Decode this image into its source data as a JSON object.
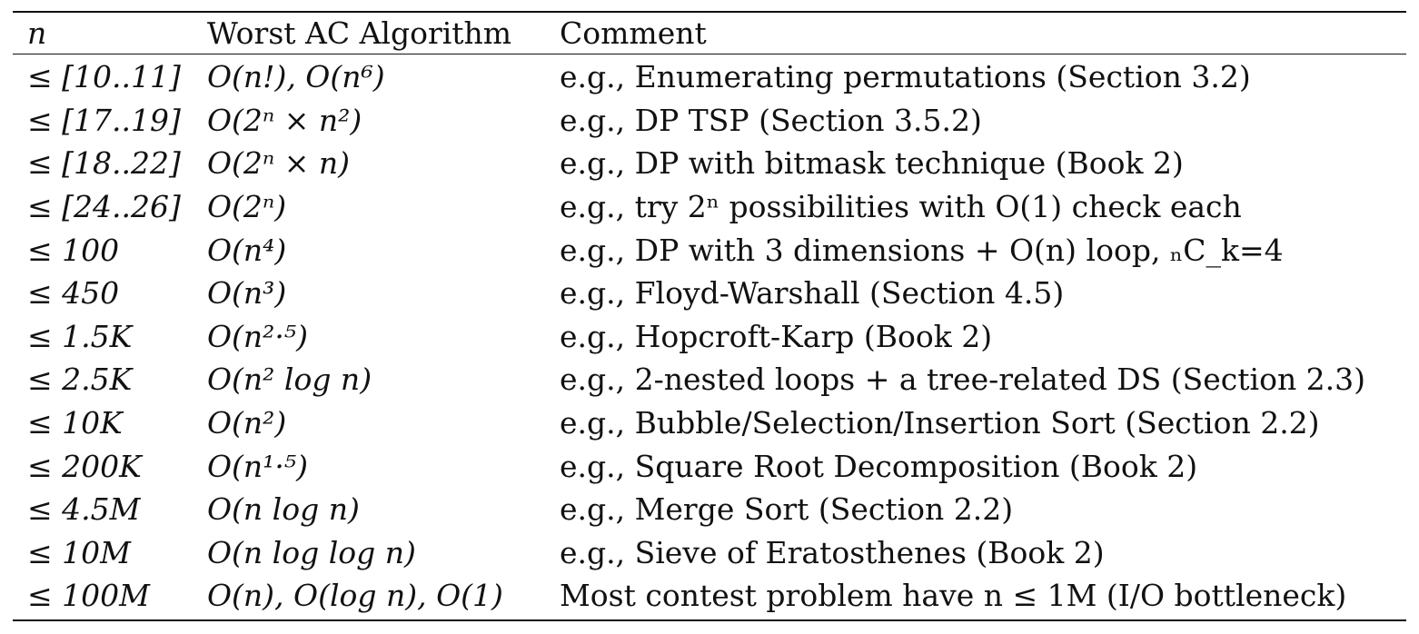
{
  "table": {
    "headers": {
      "n": "n",
      "algorithm": "Worst AC Algorithm",
      "comment": "Comment"
    },
    "rows": [
      {
        "n": "≤ [10..11]",
        "algorithm": "O(n!), O(n⁶)",
        "comment": "e.g., Enumerating permutations (Section 3.2)"
      },
      {
        "n": "≤ [17..19]",
        "algorithm": "O(2ⁿ × n²)",
        "comment": "e.g., DP TSP (Section 3.5.2)"
      },
      {
        "n": "≤ [18..22]",
        "algorithm": "O(2ⁿ × n)",
        "comment": "e.g., DP with bitmask technique (Book 2)"
      },
      {
        "n": "≤ [24..26]",
        "algorithm": "O(2ⁿ)",
        "comment": "e.g., try 2ⁿ possibilities with O(1) check each"
      },
      {
        "n": "≤ 100",
        "algorithm": "O(n⁴)",
        "comment": "e.g., DP with 3 dimensions + O(n) loop, ₙC_k=4"
      },
      {
        "n": "≤ 450",
        "algorithm": "O(n³)",
        "comment": "e.g., Floyd-Warshall (Section 4.5)"
      },
      {
        "n": "≤ 1.5K",
        "algorithm": "O(n²·⁵)",
        "comment": "e.g., Hopcroft-Karp (Book 2)"
      },
      {
        "n": "≤ 2.5K",
        "algorithm": "O(n² log n)",
        "comment": "e.g., 2-nested loops + a tree-related DS (Section 2.3)"
      },
      {
        "n": "≤ 10K",
        "algorithm": "O(n²)",
        "comment": "e.g., Bubble/Selection/Insertion Sort (Section 2.2)"
      },
      {
        "n": "≤ 200K",
        "algorithm": "O(n¹·⁵)",
        "comment": "e.g., Square Root Decomposition (Book 2)"
      },
      {
        "n": "≤ 4.5M",
        "algorithm": "O(n log n)",
        "comment": "e.g., Merge Sort (Section 2.2)"
      },
      {
        "n": "≤ 10M",
        "algorithm": "O(n log log n)",
        "comment": "e.g., Sieve of Eratosthenes (Book 2)"
      },
      {
        "n": "≤ 100M",
        "algorithm": "O(n), O(log n), O(1)",
        "comment": "Most contest problem have n ≤ 1M (I/O bottleneck)"
      }
    ]
  }
}
